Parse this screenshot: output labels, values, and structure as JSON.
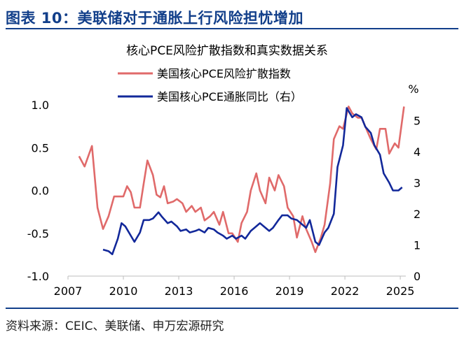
{
  "figure": {
    "heading": "图表 10：美联储对于通胀上行风险担忧增加",
    "source": "资料来源：CEIC、美联储、申万宏源研究"
  },
  "colors": {
    "brand": "#123f8a",
    "series_index": "#e06a6a",
    "series_inflation": "#12289a"
  },
  "chart_data": {
    "type": "line",
    "title": "核心PCE风险扩散指数和真实数据关系",
    "legend_position": "top-center",
    "x_ticks": [
      "2007",
      "2010",
      "2013",
      "2016",
      "2019",
      "2022",
      "2025"
    ],
    "xlim": [
      2007,
      2025.3
    ],
    "y_left": {
      "lim": [
        -1.0,
        1.0
      ],
      "ticks": [
        "1.0",
        "0.5",
        "0.0",
        "-0.5",
        "-1.0"
      ]
    },
    "y_right": {
      "lim": [
        0,
        5.5
      ],
      "ticks": [
        "5",
        "4",
        "3",
        "2",
        "1",
        "0"
      ],
      "unit": "%"
    },
    "series": [
      {
        "name": "美国核心PCE风险扩散指数",
        "axis": "left",
        "x": [
          2007.6,
          2007.9,
          2008.3,
          2008.6,
          2008.9,
          2009.2,
          2009.5,
          2009.8,
          2010.0,
          2010.2,
          2010.4,
          2010.6,
          2010.9,
          2011.1,
          2011.3,
          2011.6,
          2011.8,
          2012.0,
          2012.2,
          2012.4,
          2012.7,
          2012.9,
          2013.2,
          2013.4,
          2013.7,
          2013.9,
          2014.2,
          2014.4,
          2014.7,
          2014.9,
          2015.2,
          2015.4,
          2015.7,
          2015.9,
          2016.2,
          2016.4,
          2016.7,
          2016.9,
          2017.2,
          2017.4,
          2017.7,
          2017.9,
          2018.2,
          2018.4,
          2018.7,
          2018.9,
          2019.2,
          2019.4,
          2019.7,
          2019.9,
          2020.2,
          2020.4,
          2020.7,
          2020.9,
          2021.2,
          2021.4,
          2021.7,
          2021.9,
          2022.2,
          2022.4,
          2022.7,
          2022.9,
          2023.2,
          2023.4,
          2023.7,
          2023.9,
          2024.2,
          2024.4,
          2024.7,
          2024.9,
          2025.2
        ],
        "values": [
          0.4,
          0.28,
          0.52,
          -0.2,
          -0.45,
          -0.3,
          -0.07,
          -0.07,
          -0.07,
          0.05,
          -0.02,
          -0.2,
          -0.2,
          0.08,
          0.35,
          0.18,
          -0.05,
          -0.08,
          0.05,
          -0.15,
          -0.13,
          -0.1,
          -0.15,
          -0.25,
          -0.18,
          -0.25,
          -0.2,
          -0.35,
          -0.3,
          -0.25,
          -0.4,
          -0.25,
          -0.5,
          -0.5,
          -0.6,
          -0.38,
          -0.25,
          0.0,
          0.2,
          0.0,
          -0.15,
          0.15,
          0.0,
          0.18,
          0.05,
          -0.2,
          -0.3,
          -0.55,
          -0.3,
          -0.45,
          -0.6,
          -0.72,
          -0.55,
          -0.4,
          0.08,
          0.6,
          0.75,
          0.72,
          0.98,
          0.9,
          0.85,
          0.85,
          0.7,
          0.6,
          0.48,
          0.72,
          0.72,
          0.43,
          0.55,
          0.5,
          0.98
        ]
      },
      {
        "name": "美国核心PCE通胀同比（右）",
        "axis": "right",
        "x": [
          2008.9,
          2009.2,
          2009.4,
          2009.7,
          2009.9,
          2010.1,
          2010.4,
          2010.6,
          2010.9,
          2011.1,
          2011.4,
          2011.6,
          2011.9,
          2012.1,
          2012.4,
          2012.6,
          2012.9,
          2013.1,
          2013.4,
          2013.6,
          2013.9,
          2014.1,
          2014.4,
          2014.6,
          2014.9,
          2015.1,
          2015.4,
          2015.6,
          2015.9,
          2016.1,
          2016.4,
          2016.6,
          2016.9,
          2017.1,
          2017.4,
          2017.6,
          2017.9,
          2018.1,
          2018.4,
          2018.6,
          2018.9,
          2019.1,
          2019.4,
          2019.6,
          2019.9,
          2020.1,
          2020.4,
          2020.6,
          2020.9,
          2021.1,
          2021.4,
          2021.6,
          2021.9,
          2022.1,
          2022.4,
          2022.6,
          2022.9,
          2023.1,
          2023.4,
          2023.6,
          2023.9,
          2024.1,
          2024.4,
          2024.6,
          2024.9,
          2025.1
        ],
        "values": [
          0.85,
          0.8,
          0.7,
          1.2,
          1.7,
          1.6,
          1.3,
          1.1,
          1.4,
          1.8,
          1.8,
          1.85,
          2.05,
          1.9,
          1.7,
          1.75,
          1.6,
          1.45,
          1.5,
          1.4,
          1.45,
          1.5,
          1.4,
          1.55,
          1.5,
          1.4,
          1.3,
          1.2,
          1.3,
          1.2,
          1.3,
          1.2,
          1.45,
          1.55,
          1.7,
          1.6,
          1.45,
          1.55,
          1.8,
          1.95,
          1.95,
          1.85,
          1.8,
          1.7,
          1.55,
          1.8,
          1.1,
          1.0,
          1.4,
          1.55,
          2.0,
          3.5,
          4.2,
          5.4,
          5.1,
          5.2,
          5.1,
          4.8,
          4.6,
          4.2,
          3.9,
          3.3,
          3.0,
          2.75,
          2.75,
          2.85
        ]
      }
    ]
  }
}
